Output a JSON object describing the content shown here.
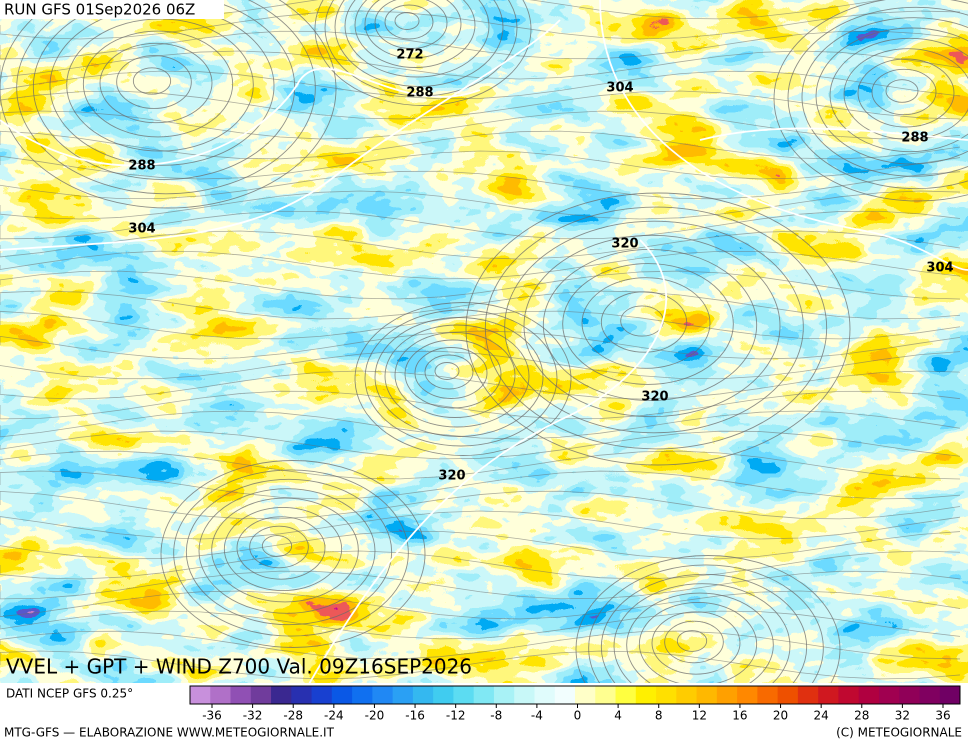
{
  "header": {
    "run": "RUN GFS 01Sep2026 06Z"
  },
  "map": {
    "title": "VVEL + GPT + WIND Z700 Val. 09Z16SEP2026",
    "contour_labels": [
      272,
      288,
      304,
      288,
      304,
      288,
      320,
      304,
      320,
      320
    ]
  },
  "colorbar": {
    "source": "DATI NCEP GFS 0.25°",
    "ticks": [
      -36,
      -32,
      -28,
      -24,
      -20,
      -16,
      -12,
      -8,
      -4,
      0,
      4,
      8,
      12,
      16,
      20,
      24,
      28,
      32,
      36
    ]
  },
  "footer": {
    "left": "MTG-GFS — ELABORAZIONE WWW.METEOGIORNALE.IT",
    "right": "(C) METEOGIORNALE"
  }
}
